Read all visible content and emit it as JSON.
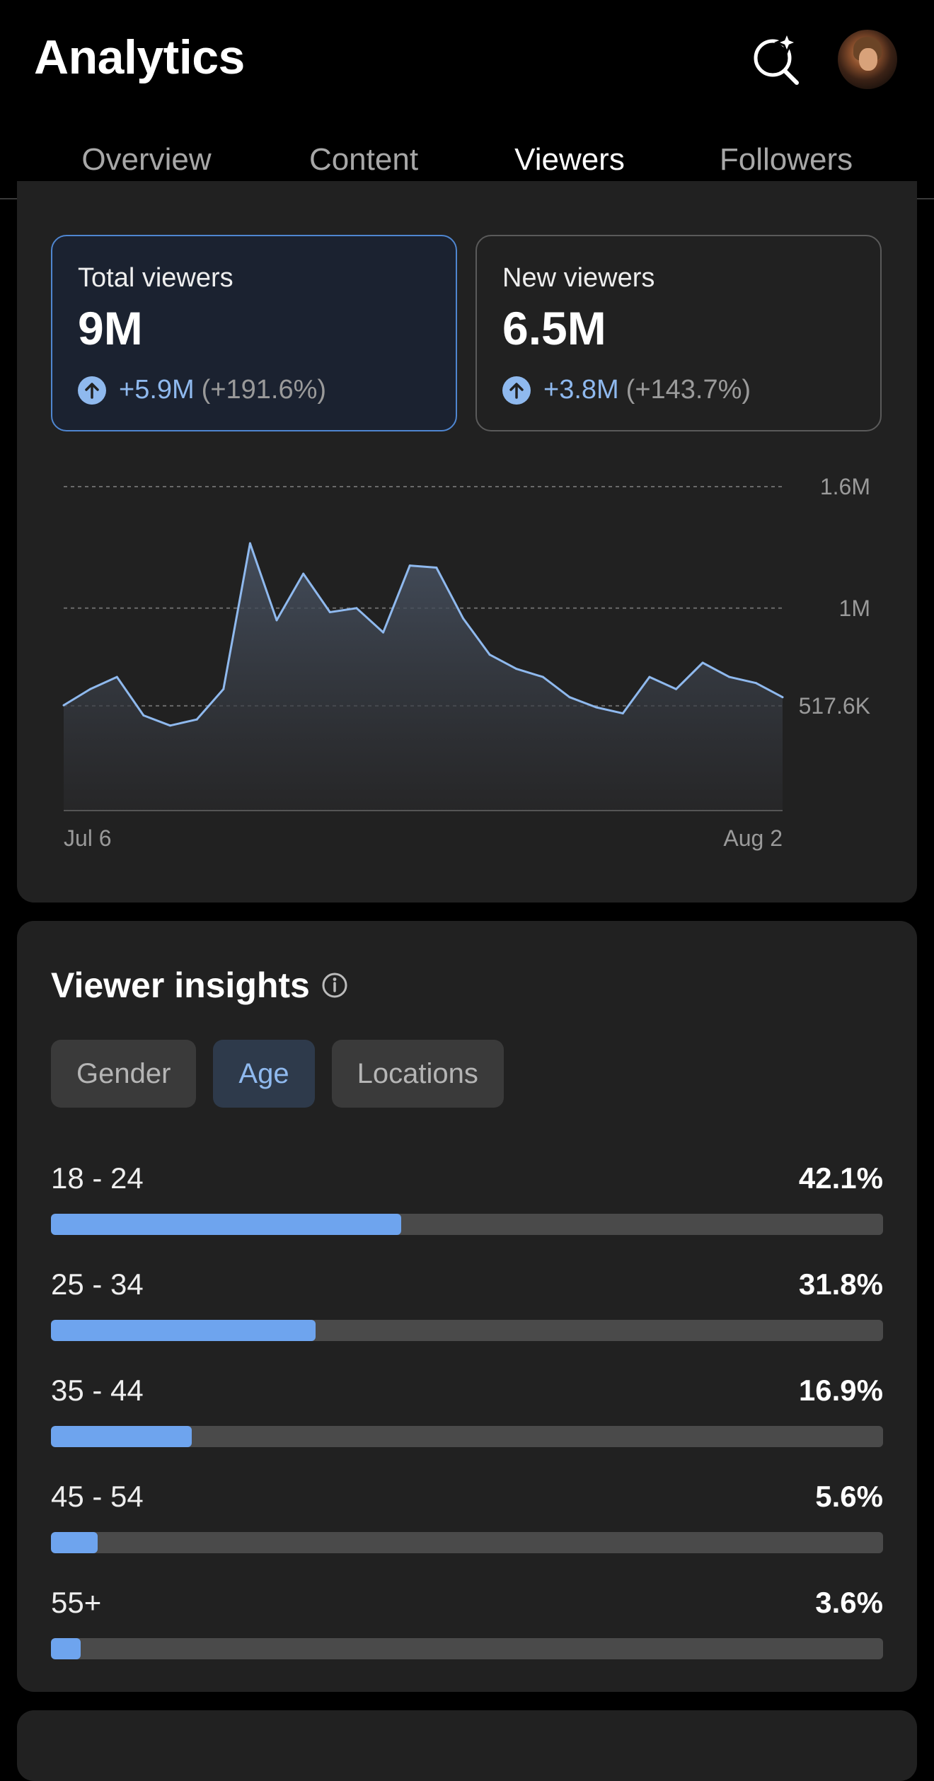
{
  "header": {
    "title": "Analytics"
  },
  "tabs": [
    {
      "label": "Overview",
      "active": false
    },
    {
      "label": "Content",
      "active": false
    },
    {
      "label": "Viewers",
      "active": true
    },
    {
      "label": "Followers",
      "active": false
    }
  ],
  "stats": {
    "total": {
      "label": "Total viewers",
      "value": "9M",
      "change": "+5.9M",
      "percent": "(+191.6%)"
    },
    "new": {
      "label": "New viewers",
      "value": "6.5M",
      "change": "+3.8M",
      "percent": "(+143.7%)"
    }
  },
  "chart_data": {
    "type": "area",
    "series": [
      {
        "values": [
          520000,
          600000,
          660000,
          470000,
          420000,
          450000,
          600000,
          1320000,
          940000,
          1170000,
          980000,
          1000000,
          880000,
          1210000,
          1200000,
          950000,
          770000,
          700000,
          660000,
          560000,
          510000,
          480000,
          660000,
          600000,
          730000,
          660000,
          630000,
          560000
        ]
      }
    ],
    "x_labels": [
      "Jul 6",
      "Aug 2"
    ],
    "y_ticks": [
      {
        "value": 1600000,
        "label": "1.6M"
      },
      {
        "value": 1000000,
        "label": "1M"
      },
      {
        "value": 517600,
        "label": "517.6K"
      }
    ],
    "ylim": [
      0,
      1600000
    ],
    "grid": true
  },
  "insights": {
    "title": "Viewer insights",
    "filters": [
      {
        "label": "Gender",
        "active": false
      },
      {
        "label": "Age",
        "active": true
      },
      {
        "label": "Locations",
        "active": false
      }
    ],
    "age_groups": [
      {
        "label": "18 - 24",
        "percent": "42.1%",
        "fraction": 0.421
      },
      {
        "label": "25 - 34",
        "percent": "31.8%",
        "fraction": 0.318
      },
      {
        "label": "35 - 44",
        "percent": "16.9%",
        "fraction": 0.169
      },
      {
        "label": "45 - 54",
        "percent": "5.6%",
        "fraction": 0.056
      },
      {
        "label": "55+",
        "percent": "3.6%",
        "fraction": 0.036
      }
    ]
  },
  "colors": {
    "accent": "#6ea4ee",
    "accent_light": "#8fb9ee",
    "card": "#212121",
    "background": "#000000"
  }
}
